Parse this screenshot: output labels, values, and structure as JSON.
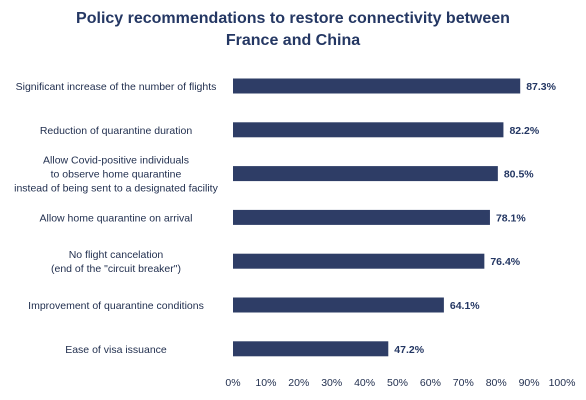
{
  "chart_data": {
    "type": "bar",
    "orientation": "horizontal",
    "title_lines": [
      "Policy recommendations to restore connectivity between",
      "France and China"
    ],
    "categories": [
      [
        "Significant increase of the number of flights"
      ],
      [
        "Reduction of quarantine duration"
      ],
      [
        "Allow Covid-positive individuals",
        "to observe home quarantine",
        "instead of being sent to a designated facility"
      ],
      [
        "Allow home quarantine on arrival"
      ],
      [
        "No flight cancelation",
        "(end of the \"circuit breaker\")"
      ],
      [
        "Improvement of quarantine conditions"
      ],
      [
        "Ease of visa issuance"
      ]
    ],
    "values": [
      87.3,
      82.2,
      80.5,
      78.1,
      76.4,
      64.1,
      47.2
    ],
    "value_labels": [
      "87.3%",
      "82.2%",
      "80.5%",
      "78.1%",
      "76.4%",
      "64.1%",
      "47.2%"
    ],
    "xlim": [
      0,
      100
    ],
    "xticks": [
      "0%",
      "10%",
      "20%",
      "30%",
      "40%",
      "50%",
      "60%",
      "70%",
      "80%",
      "90%",
      "100%"
    ],
    "grid": false,
    "colors": {
      "bar": "#2e3d66",
      "title": "#243763",
      "text": "#1f2d4d",
      "value": "#243763"
    }
  }
}
